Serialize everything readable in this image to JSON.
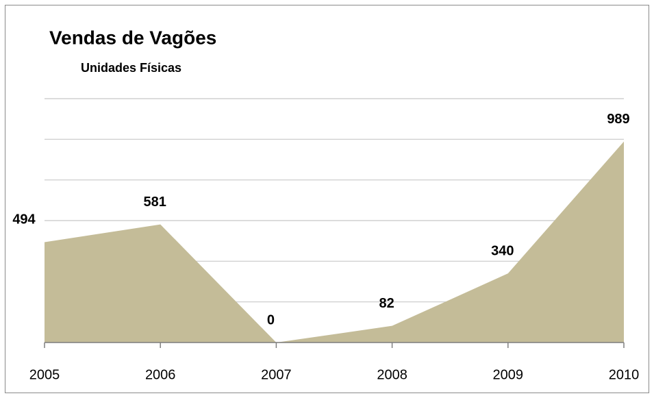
{
  "chart_data": {
    "type": "area",
    "title": "Vendas de Vagões",
    "subtitle": "Unidades Físicas",
    "categories": [
      "2005",
      "2006",
      "2007",
      "2008",
      "2009",
      "2010"
    ],
    "values": [
      494,
      581,
      0,
      82,
      340,
      989
    ],
    "color": "#c4bc98",
    "ylim": [
      0,
      1200
    ],
    "yticks": [
      0,
      200,
      400,
      600,
      800,
      1000,
      1200
    ],
    "grid": true
  }
}
